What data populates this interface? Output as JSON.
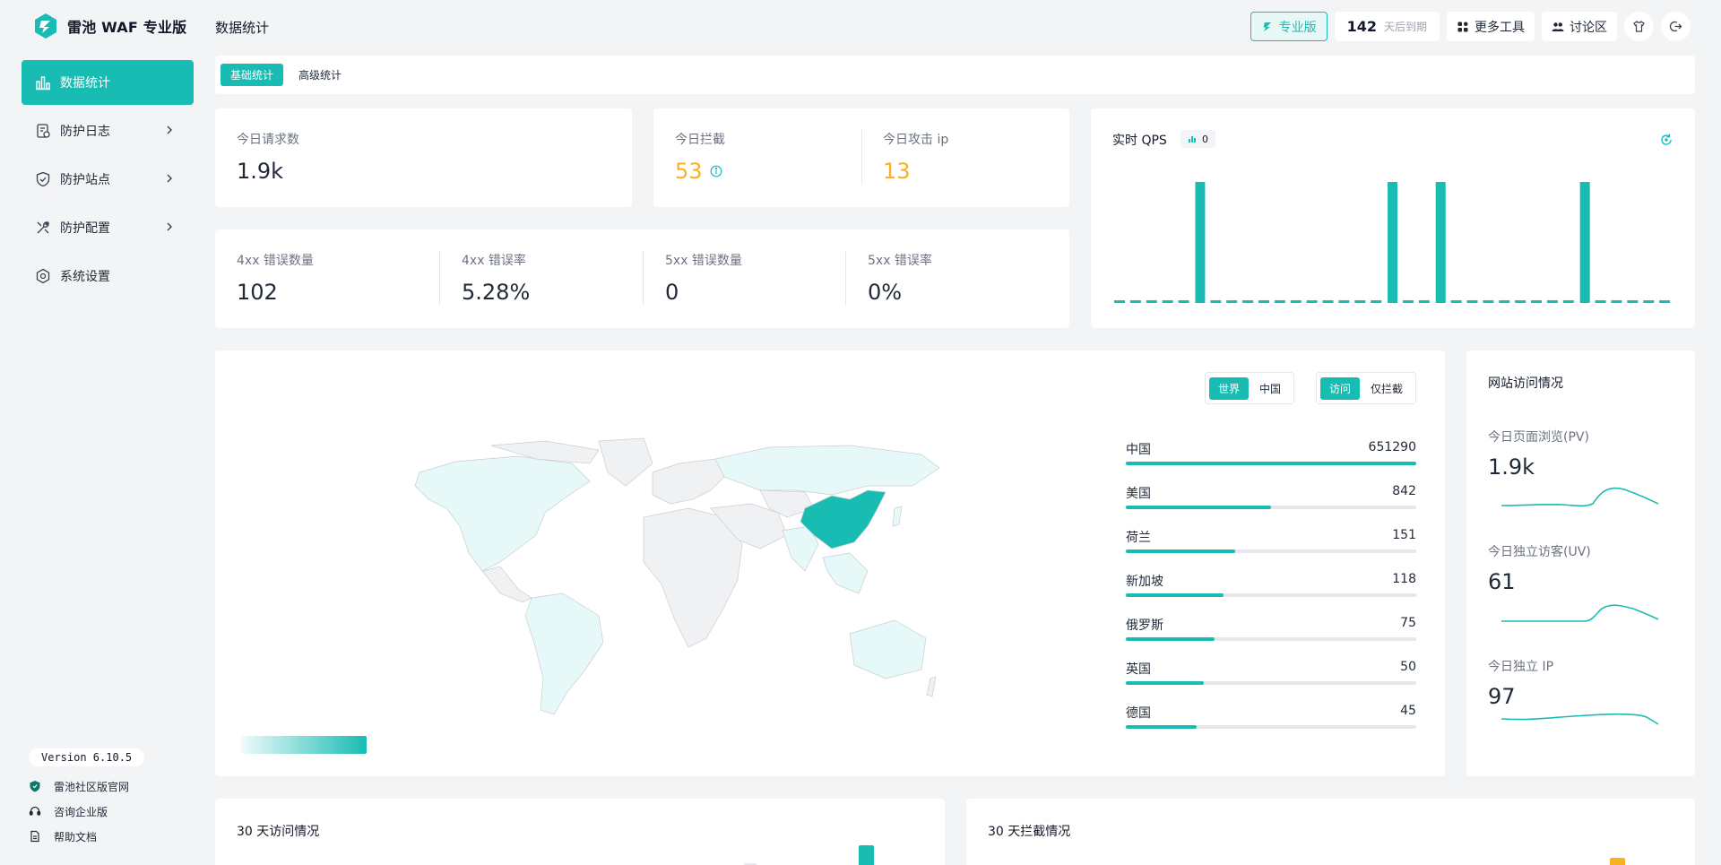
{
  "app": {
    "name": "雷池 WAF 专业版"
  },
  "sidebar": {
    "items": [
      {
        "label": "数据统计",
        "icon": "bar-chart-icon",
        "active": true
      },
      {
        "label": "防护日志",
        "icon": "log-icon",
        "has_children": true
      },
      {
        "label": "防护站点",
        "icon": "shield-icon",
        "has_children": true
      },
      {
        "label": "防护配置",
        "icon": "tools-icon",
        "has_children": true
      },
      {
        "label": "系统设置",
        "icon": "gear-icon"
      }
    ],
    "version": "Version 6.10.5",
    "footer_links": [
      {
        "label": "雷池社区版官网",
        "icon": "community-shield-icon"
      },
      {
        "label": "咨询企业版",
        "icon": "headset-icon"
      },
      {
        "label": "帮助文档",
        "icon": "document-icon"
      }
    ]
  },
  "header": {
    "page_title": "数据统计",
    "pro_label": "专业版",
    "days_left": "142",
    "days_left_suffix": "天后到期",
    "more_tools": "更多工具",
    "forum": "讨论区"
  },
  "tabs": [
    {
      "label": "基础统计",
      "active": true
    },
    {
      "label": "高级统计",
      "active": false
    }
  ],
  "stats": {
    "requests_label": "今日请求数",
    "requests_value": "1.9k",
    "blocked_label": "今日拦截",
    "blocked_value": "53",
    "attack_ip_label": "今日攻击 ip",
    "attack_ip_value": "13",
    "err4xx_count_label": "4xx 错误数量",
    "err4xx_count_value": "102",
    "err4xx_rate_label": "4xx 错误率",
    "err4xx_rate_value": "5.28%",
    "err5xx_count_label": "5xx 错误数量",
    "err5xx_count_value": "0",
    "err5xx_rate_label": "5xx 错误率",
    "err5xx_rate_value": "0%"
  },
  "qps": {
    "title": "实时 QPS",
    "badge_value": "0"
  },
  "map_panel": {
    "region_toggle": [
      {
        "label": "世界",
        "active": true
      },
      {
        "label": "中国",
        "active": false
      }
    ],
    "mode_toggle": [
      {
        "label": "访问",
        "active": true
      },
      {
        "label": "仅拦截",
        "active": false
      }
    ],
    "ranking": [
      {
        "country": "中国",
        "value": "651290",
        "fill": 1.0
      },
      {
        "country": "美国",
        "value": "842",
        "fill": 0.5
      },
      {
        "country": "荷兰",
        "value": "151",
        "fill": 0.375
      },
      {
        "country": "新加坡",
        "value": "118",
        "fill": 0.335
      },
      {
        "country": "俄罗斯",
        "value": "75",
        "fill": 0.305
      },
      {
        "country": "英国",
        "value": "50",
        "fill": 0.27
      },
      {
        "country": "德国",
        "value": "45",
        "fill": 0.245
      }
    ]
  },
  "site_access": {
    "title": "网站访问情况",
    "pv_label": "今日页面浏览(PV)",
    "pv_value": "1.9k",
    "uv_label": "今日独立访客(UV)",
    "uv_value": "61",
    "ip_label": "今日独立 IP",
    "ip_value": "97"
  },
  "bottom": {
    "visits_title": "30 天访问情况",
    "blocks_title": "30 天拦截情况"
  },
  "colors": {
    "accent": "#19bcb3",
    "warning": "#fbb024",
    "map_light": "#e6f8f7",
    "map_gray": "#f0f1f3"
  }
}
